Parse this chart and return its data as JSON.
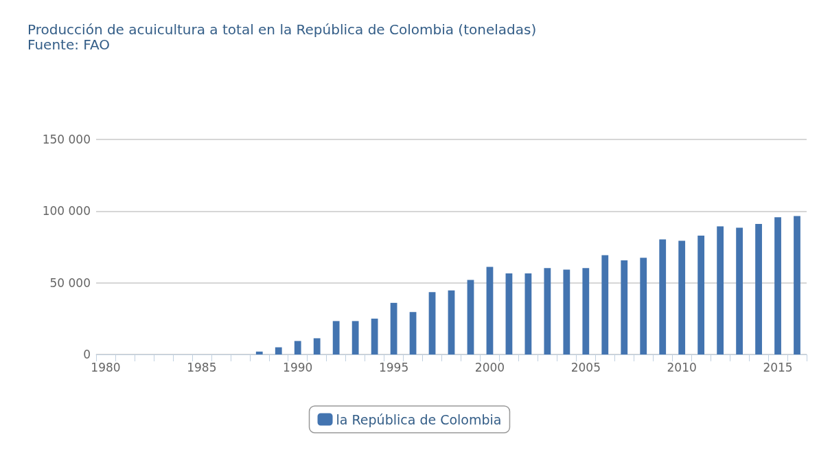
{
  "chart_data": {
    "type": "bar",
    "title": "Producción de acuicultura a total en la República de Colombia (toneladas)",
    "subtitle": "Fuente: FAO",
    "categories": [
      "1980",
      null,
      null,
      null,
      null,
      "1985",
      null,
      null,
      null,
      null,
      "1990",
      null,
      null,
      null,
      null,
      "1995",
      null,
      null,
      null,
      null,
      "2000",
      null,
      null,
      null,
      null,
      "2005",
      null,
      null,
      null,
      null,
      "2010",
      null,
      null,
      null,
      null,
      "2015",
      null
    ],
    "series": [
      {
        "name": "la República de Colombia",
        "color": "#4374b0",
        "values": [
          0,
          0,
          0,
          0,
          0,
          0,
          0,
          0,
          2000,
          5000,
          9400,
          11300,
          23300,
          23300,
          25000,
          36000,
          29600,
          43500,
          44700,
          52000,
          61100,
          56500,
          56500,
          60300,
          59200,
          60300,
          69200,
          65600,
          67500,
          80300,
          79300,
          82900,
          89400,
          88400,
          91100,
          95700,
          96600
        ]
      }
    ],
    "ylim": [
      0,
      150000
    ],
    "yticks": [
      {
        "value": 0,
        "label": "0"
      },
      {
        "value": 50000,
        "label": "50 000"
      },
      {
        "value": 100000,
        "label": "100 000"
      },
      {
        "value": 150000,
        "label": "150 000"
      }
    ],
    "grid": "y",
    "legend": "bottom"
  }
}
